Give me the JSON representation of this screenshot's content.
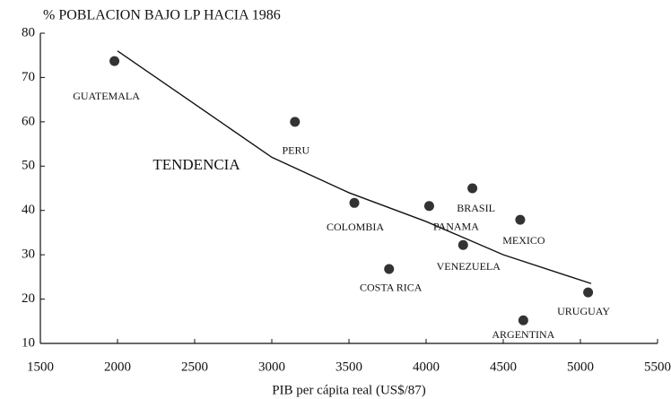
{
  "chart_data": {
    "type": "scatter",
    "title": "% POBLACION BAJO LP HACIA 1986",
    "x_label": "PIB per cápita real (US$/87)",
    "xlim": [
      1500,
      5500
    ],
    "xticks": [
      1500,
      2000,
      2500,
      3000,
      3500,
      4000,
      4500,
      5000,
      5500
    ],
    "ylim": [
      10,
      80
    ],
    "yticks": [
      10,
      20,
      30,
      40,
      50,
      60,
      70,
      80
    ],
    "point_color": "#333333",
    "line_color": "#111111",
    "points": [
      {
        "label": "GUATEMALA",
        "x": 1980,
        "y": 73.7
      },
      {
        "label": "PERU",
        "x": 3150,
        "y": 60
      },
      {
        "label": "COLOMBIA",
        "x": 3535,
        "y": 41.7
      },
      {
        "label": "COSTA RICA",
        "x": 3760,
        "y": 26.8
      },
      {
        "label": "PANAMA",
        "x": 4020,
        "y": 41
      },
      {
        "label": "BRASIL",
        "x": 4300,
        "y": 45
      },
      {
        "label": "VENEZUELA",
        "x": 4240,
        "y": 32.2
      },
      {
        "label": "MEXICO",
        "x": 4610,
        "y": 37.9
      },
      {
        "label": "URUGUAY",
        "x": 5050,
        "y": 21.5
      },
      {
        "label": "ARGENTINA",
        "x": 4630,
        "y": 15.2
      }
    ],
    "trend": {
      "label": "TENDENCIA",
      "x": [
        2000,
        2500,
        3000,
        3500,
        4000,
        4500,
        5070
      ],
      "y": [
        76,
        64,
        52,
        44,
        37.5,
        30,
        23.5
      ]
    }
  }
}
